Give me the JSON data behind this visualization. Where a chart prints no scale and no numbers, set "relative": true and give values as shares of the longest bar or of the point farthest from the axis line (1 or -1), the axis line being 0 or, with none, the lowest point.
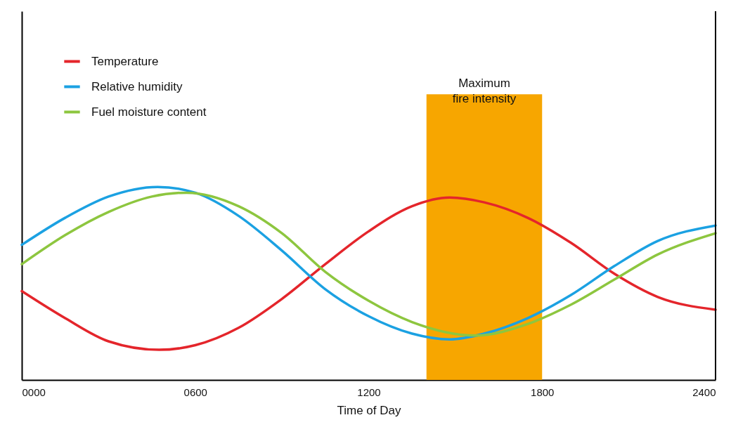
{
  "chart_data": {
    "type": "line",
    "relative": true,
    "xlabel": "Time of Day",
    "x": [
      0,
      150,
      300,
      475,
      600,
      750,
      900,
      1050,
      1200,
      1350,
      1480,
      1600,
      1750,
      1900,
      2050,
      2200,
      2400
    ],
    "series": [
      {
        "name": "Temperature",
        "color": "#e4252b",
        "values": [
          0.46,
          0.32,
          0.2,
          0.156,
          0.18,
          0.27,
          0.42,
          0.6,
          0.77,
          0.9,
          0.945,
          0.92,
          0.84,
          0.71,
          0.55,
          0.43,
          0.364
        ]
      },
      {
        "name": "Relative humidity",
        "color": "#1ba1e2",
        "x": [
          0,
          150,
          300,
          470,
          600,
          750,
          900,
          1050,
          1200,
          1350,
          1480,
          1600,
          1750,
          1900,
          2050,
          2200,
          2400
        ],
        "values": [
          0.7,
          0.84,
          0.95,
          1,
          0.97,
          0.85,
          0.67,
          0.47,
          0.33,
          0.24,
          0.21,
          0.24,
          0.32,
          0.44,
          0.59,
          0.72,
          0.8
        ]
      },
      {
        "name": "Fuel moisture content",
        "color": "#8dc63f",
        "x": [
          0,
          150,
          300,
          450,
          570,
          750,
          900,
          1050,
          1200,
          1350,
          1570,
          1750,
          1900,
          2050,
          2200,
          2400
        ],
        "values": [
          0.6,
          0.75,
          0.87,
          0.95,
          0.97,
          0.9,
          0.76,
          0.56,
          0.41,
          0.3,
          0.23,
          0.29,
          0.39,
          0.52,
          0.65,
          0.76
        ]
      }
    ],
    "xlim": [
      0,
      2400
    ],
    "xticks": [
      {
        "value": 0,
        "label": "0000"
      },
      {
        "value": 600,
        "label": "0600"
      },
      1200,
      1800,
      2400
    ],
    "bands": [
      {
        "axis": "x",
        "from": 1400,
        "to": 1800,
        "label": "Maximum\nfire intensity",
        "color": "#f7a600"
      }
    ],
    "legend": "top left",
    "grid": false,
    "marker": "none",
    "line_style": "solid"
  }
}
